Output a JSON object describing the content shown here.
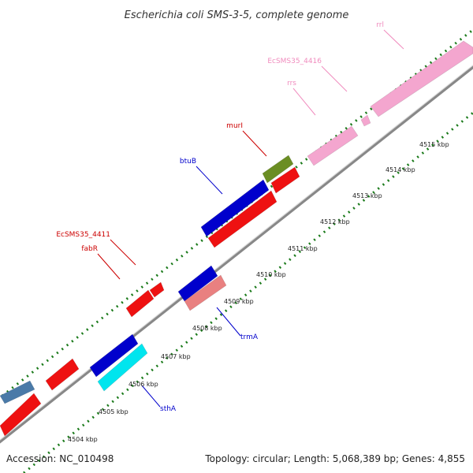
{
  "title": "Escherichia coli SMS-3-5, complete genome",
  "footer": {
    "accession": "Accession: NC_010498",
    "summary": "Topology: circular; Length: 5,068,389 bp; Genes: 4,855"
  },
  "ticks": [
    {
      "label": "4504 kbp"
    },
    {
      "label": "4505 kbp"
    },
    {
      "label": "4506 kbp"
    },
    {
      "label": "4507 kbp"
    },
    {
      "label": "4508 kbp"
    },
    {
      "label": "4509 kbp"
    },
    {
      "label": "4510 kbp"
    },
    {
      "label": "4511 kbp"
    },
    {
      "label": "4512 kbp"
    },
    {
      "label": "4513 kbp"
    },
    {
      "label": "4514 kbp"
    },
    {
      "label": "4515 kbp"
    }
  ],
  "genes": [
    {
      "label": "rrl",
      "color": "#f4a6cf",
      "strand": "top"
    },
    {
      "label": "EcSMS35_4416",
      "color": "#f4a6cf",
      "strand": "top"
    },
    {
      "label": "rrs",
      "color": "#f4a6cf",
      "strand": "top"
    },
    {
      "label": "murI",
      "color": "#6b8e23",
      "strand": "top"
    },
    {
      "label": "btuB",
      "color": "#0000cc",
      "strand": "top"
    },
    {
      "label": "EcSMS35_4411",
      "color": "#ee1111",
      "strand": "top"
    },
    {
      "label": "fabR",
      "color": "#ee1111",
      "strand": "top"
    },
    {
      "label": "trmA",
      "color": "#e98080",
      "strand": "bottom"
    },
    {
      "label": "sthA",
      "color": "#00e5ee",
      "strand": "bottom"
    }
  ],
  "colors": {
    "backbone": "#999999",
    "tick_green": "#1a7a1a",
    "red": "#ee1111",
    "blue": "#0000cc",
    "steelblue": "#4a7aa8",
    "pink": "#f4a6cf",
    "olive": "#6b8e23",
    "salmon": "#e98080",
    "cyan": "#00e5ee"
  }
}
